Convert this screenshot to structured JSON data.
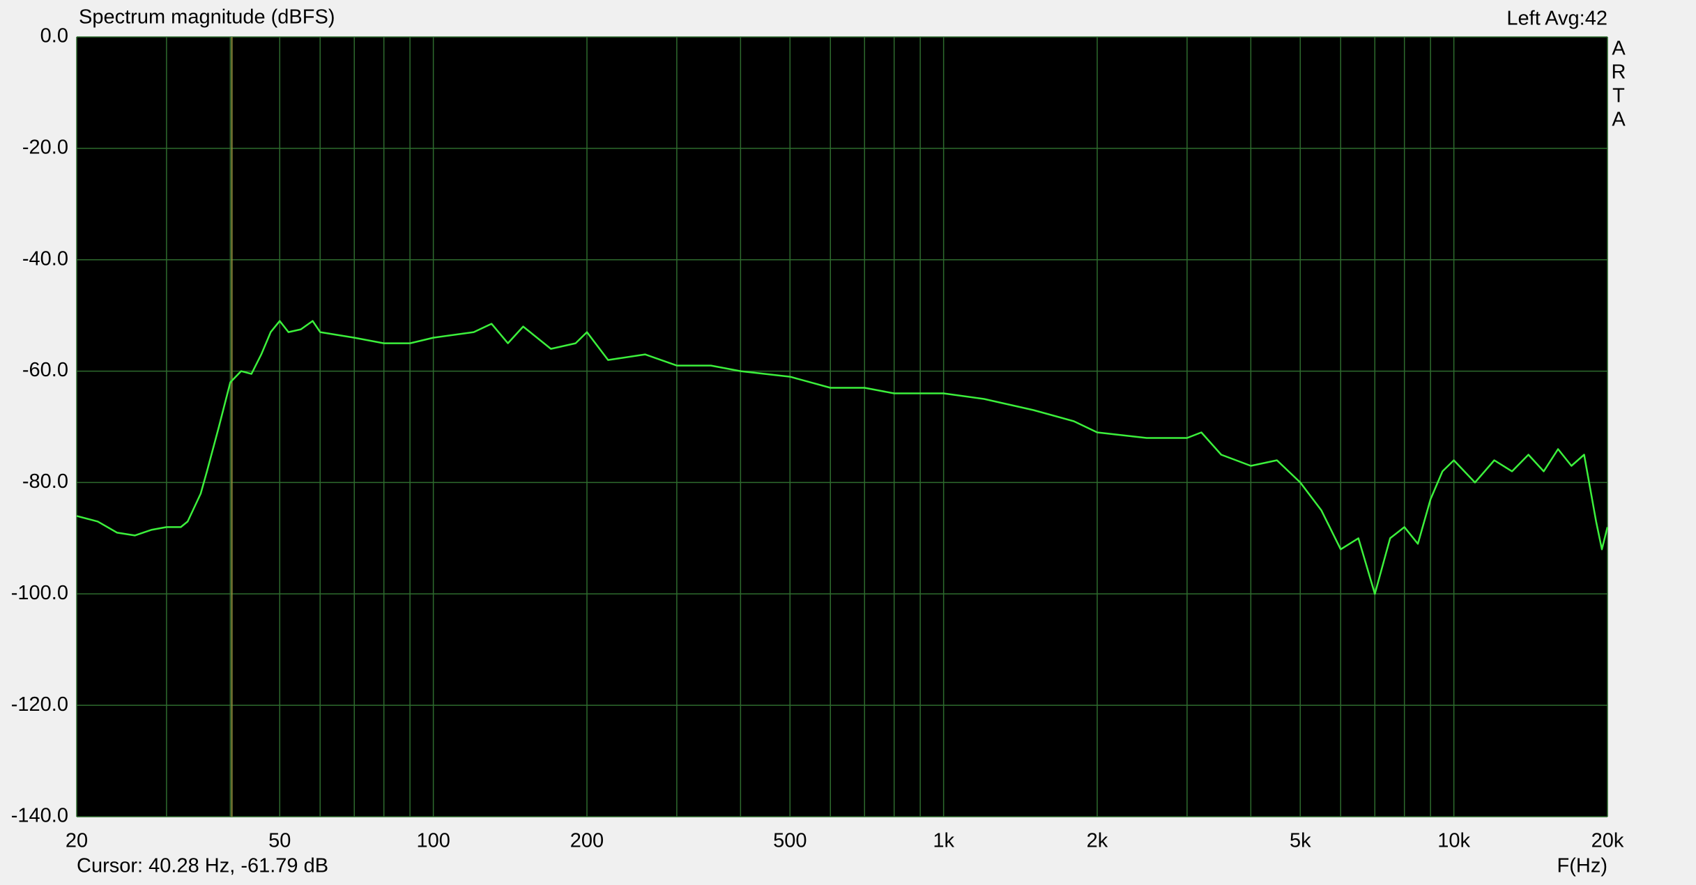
{
  "chart_data": {
    "type": "line",
    "title": "Spectrum magnitude (dBFS)",
    "channel_text": "Left  Avg:42",
    "brand_letters": [
      "A",
      "R",
      "T",
      "A"
    ],
    "x_label": "F(Hz)",
    "cursor_text": "Cursor: 40.28 Hz, -61.79 dB",
    "cursor_x": 40.28,
    "cursor_color": "#8c8c3c",
    "log_x": true,
    "grid": true,
    "grid_color": "#2e6b2e",
    "color": "#3cf03c",
    "xlim": [
      20,
      20000
    ],
    "ylim": [
      -140,
      0
    ],
    "xticks": [
      20,
      50,
      100,
      200,
      500,
      {
        "value": 1000,
        "label": "1k"
      },
      {
        "value": 2000,
        "label": "2k"
      },
      {
        "value": 5000,
        "label": "5k"
      },
      {
        "value": 10000,
        "label": "10k"
      },
      {
        "value": 20000,
        "label": "20k"
      }
    ],
    "xminor": [
      30,
      40,
      60,
      70,
      80,
      90,
      300,
      400,
      600,
      700,
      800,
      900,
      3000,
      4000,
      6000,
      7000,
      8000,
      9000
    ],
    "yticks": [
      {
        "value": 0,
        "label": "0.0"
      },
      {
        "value": -20,
        "label": "-20.0"
      },
      {
        "value": -40,
        "label": "-40.0"
      },
      {
        "value": -60,
        "label": "-60.0"
      },
      {
        "value": -80,
        "label": "-80.0"
      },
      {
        "value": -100,
        "label": "-100.0"
      },
      {
        "value": -120,
        "label": "-120.0"
      },
      {
        "value": -140,
        "label": "-140.0"
      }
    ],
    "x": [
      20,
      22,
      24,
      26,
      28,
      30,
      32,
      33,
      35,
      36,
      38,
      40,
      42,
      44,
      46,
      48,
      50,
      52,
      55,
      58,
      60,
      70,
      80,
      90,
      100,
      120,
      130,
      140,
      150,
      170,
      190,
      200,
      220,
      260,
      300,
      350,
      400,
      500,
      600,
      700,
      800,
      1000,
      1200,
      1500,
      1800,
      2000,
      2500,
      3000,
      3200,
      3500,
      4000,
      4500,
      5000,
      5500,
      6000,
      6500,
      7000,
      7500,
      8000,
      8500,
      9000,
      9500,
      10000,
      11000,
      12000,
      13000,
      14000,
      15000,
      16000,
      17000,
      18000,
      19000,
      19500,
      20000
    ],
    "values": [
      -86,
      -87,
      -89,
      -89.5,
      -88.5,
      -88,
      -88,
      -87,
      -82,
      -78,
      -70,
      -62,
      -60,
      -60.5,
      -57,
      -53,
      -51,
      -53,
      -52.5,
      -51,
      -53,
      -54,
      -55,
      -55,
      -54,
      -53,
      -51.5,
      -55,
      -52,
      -56,
      -55,
      -53,
      -58,
      -57,
      -59,
      -59,
      -60,
      -61,
      -63,
      -63,
      -64,
      -64,
      -65,
      -67,
      -69,
      -71,
      -72,
      -72,
      -71,
      -75,
      -77,
      -76,
      -80,
      -85,
      -92,
      -90,
      -100,
      -90,
      -88,
      -91,
      -83,
      -78,
      -76,
      -80,
      -76,
      -78,
      -75,
      -78,
      -74,
      -77,
      -75,
      -87,
      -92,
      -88
    ]
  }
}
